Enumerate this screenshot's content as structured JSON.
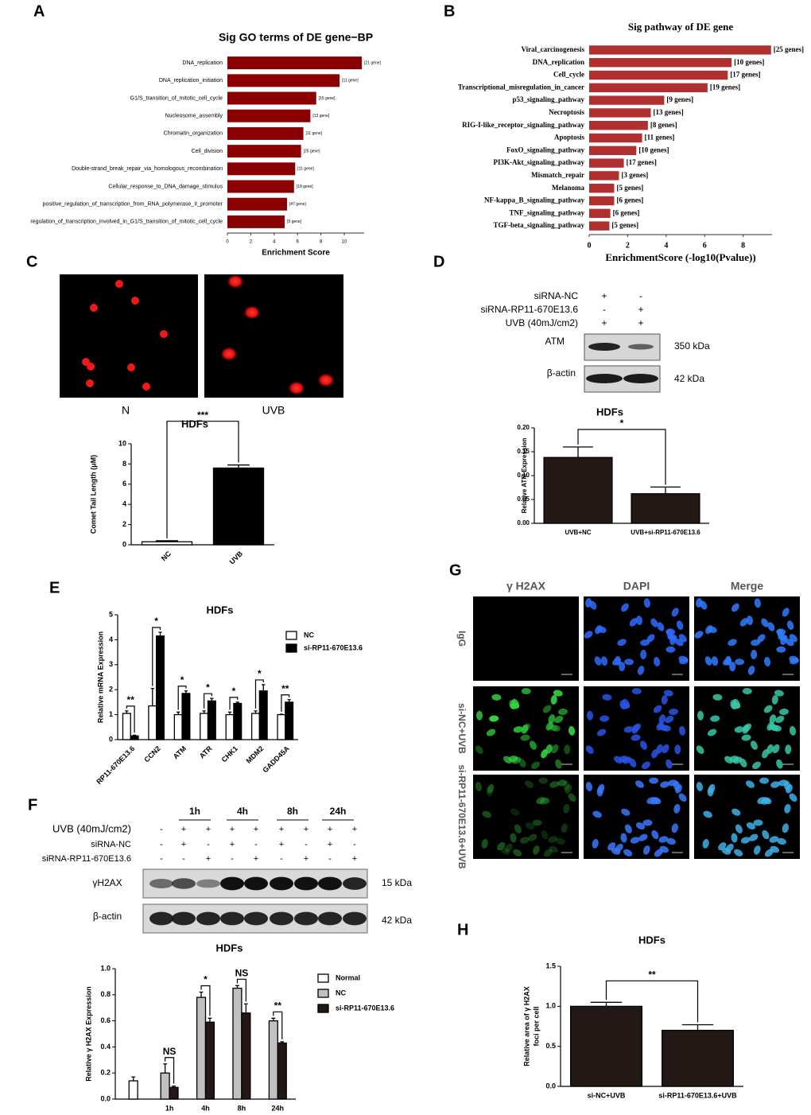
{
  "panel_labels": [
    "A",
    "B",
    "C",
    "D",
    "E",
    "F",
    "G",
    "H"
  ],
  "chart_data": [
    {
      "type": "bar",
      "orientation": "horizontal",
      "title": "Sig GO terms of DE gene−BP",
      "xlabel": "Enrichment Score",
      "categories": [
        "DNA_replication",
        "DNA_replication_initiation",
        "G1/S_transition_of_mitotic_cell_cycle",
        "Nucleosome_assembly",
        "Chromatin_organization",
        "Cell_division",
        "Double-strand_break_repair_via_homologous_recombination",
        "Cellular_response_to_DNA_damage_stimulus",
        "positive_regulation_of_transcription_from_RNA_polymerase_II_promoter",
        "regulation_of_transcription_involved_in_G1/S_transition_of_mitotic_cell_cycle"
      ],
      "values": [
        11.5,
        9.6,
        7.6,
        7.1,
        6.5,
        6.3,
        5.8,
        5.7,
        5.1,
        4.9
      ],
      "bar_annotations": [
        "[21 gene]",
        "[11 gene]",
        "[15 gene]",
        "[13 gene]",
        "[11 gene]",
        "[25 gene]",
        "[11 gene]",
        "[18 gene]",
        "[47 gene]",
        "[9 gene]"
      ],
      "color": "#8b0000",
      "xlim": [
        0,
        11.7
      ],
      "xticks": [
        0,
        2,
        4,
        6,
        8,
        10
      ]
    },
    {
      "type": "bar",
      "orientation": "horizontal",
      "title": "Sig pathway of DE gene",
      "xlabel": "EnrichmentScore (-log10(Pvalue))",
      "categories": [
        "Viral_carcinogenesis",
        "DNA_replication",
        "Cell_cycle",
        "Transcriptional_misregulation_in_cancer",
        "p53_signaling_pathway",
        "Necroptosis",
        "RIG-I-like_receptor_signaling_pathway",
        "Apoptosis",
        "FoxO_signaling_pathway",
        "PI3K-Akt_signaling_pathway",
        "Mismatch_repair",
        "Melanoma",
        "NF-kappa_B_signaling_pathway",
        "TNF_signaling_pathway",
        "TGF-beta_signaling_pathway"
      ],
      "values": [
        9.45,
        7.4,
        7.2,
        6.15,
        3.9,
        3.2,
        3.05,
        2.75,
        2.45,
        1.8,
        1.55,
        1.3,
        1.3,
        1.1,
        1.05
      ],
      "bar_annotations": [
        "[25 genes]",
        "[10 genes]",
        "[17 genes]",
        "[19 genes]",
        "[9 genes]",
        "[13 genes]",
        "[8 genes]",
        "[11 genes]",
        "[10 genes]",
        "[17 genes]",
        "[3 genes]",
        "[5 genes]",
        "[6 genes]",
        "[6 genes]",
        "[5 genes]"
      ],
      "color": "#b03030",
      "xlim": [
        0,
        9.5
      ],
      "xticks": [
        0,
        2,
        4,
        6,
        8
      ]
    },
    {
      "type": "bar",
      "title": "HDFs",
      "ylabel": "Comet Tail Length (μM)",
      "categories": [
        "NC",
        "UVB"
      ],
      "values": [
        0.3,
        7.6
      ],
      "errors": [
        0.1,
        0.3
      ],
      "colors": [
        "#ffffff",
        "#000000"
      ],
      "ylim": [
        0,
        10
      ],
      "yticks": [
        0,
        2,
        4,
        6,
        8,
        10
      ],
      "significance": "***"
    },
    {
      "type": "bar",
      "title": "HDFs",
      "ylabel": "Relative ATM Expression",
      "categories": [
        "UVB+NC",
        "UVB+si-RP11-670E13.6"
      ],
      "values": [
        0.138,
        0.062
      ],
      "errors": [
        0.022,
        0.014
      ],
      "color": "#231815",
      "ylim": [
        0,
        0.2
      ],
      "yticks": [
        {
          "value": 0,
          "label": "0.00"
        },
        0.05,
        {
          "value": 0.1,
          "label": "0.10"
        },
        0.15,
        {
          "value": 0.2,
          "label": "0.20"
        }
      ],
      "significance": "*"
    },
    {
      "type": "bar",
      "title": "HDFs",
      "ylabel": "Relative mRNA Expression",
      "categories": [
        "RP11-670E13.6",
        "CCN2",
        "ATM",
        "ATR",
        "CHK1",
        "MDM2",
        "GADD45A"
      ],
      "series": [
        {
          "name": "NC",
          "color": "#ffffff",
          "values": [
            1.05,
            1.35,
            1.0,
            1.05,
            1.0,
            1.05,
            1.0
          ],
          "errors": [
            0.1,
            0.7,
            0.1,
            0.1,
            0.1,
            0.1,
            0.02
          ]
        },
        {
          "name": "si-RP11-670E13.6",
          "color": "#000000",
          "values": [
            0.15,
            4.15,
            1.85,
            1.55,
            1.45,
            1.95,
            1.5
          ],
          "errors": [
            0.03,
            0.15,
            0.1,
            0.1,
            0.05,
            0.25,
            0.1
          ]
        }
      ],
      "ylim": [
        0,
        5
      ],
      "yticks": [
        0,
        1,
        2,
        3,
        4,
        5
      ],
      "significance": [
        "**",
        "*",
        "*",
        "*",
        "*",
        "*",
        "**"
      ]
    },
    {
      "type": "bar",
      "title": "HDFs",
      "ylabel": "Relative γ H2AX Expression",
      "categories": [
        null,
        "1h",
        "4h",
        "8h",
        "24h"
      ],
      "series": [
        {
          "name": "Normal",
          "color": "#ffffff",
          "values": [
            0.14,
            null,
            null,
            null,
            null
          ],
          "errors": [
            0.03,
            null,
            null,
            null,
            null
          ]
        },
        {
          "name": "NC",
          "color": "#c0c0c0",
          "values": [
            null,
            0.2,
            0.78,
            0.85,
            0.6
          ],
          "errors": [
            null,
            0.07,
            0.04,
            0.02,
            0.02
          ]
        },
        {
          "name": "si-RP11-670E13.6",
          "color": "#231815",
          "values": [
            null,
            0.09,
            0.59,
            0.66,
            0.43
          ],
          "errors": [
            null,
            0.01,
            0.03,
            0.07,
            0.01
          ]
        }
      ],
      "ylim": [
        0,
        1
      ],
      "yticks": [
        {
          "value": 0,
          "label": "0.0"
        },
        0.2,
        0.4,
        0.6,
        0.8,
        {
          "value": 1,
          "label": "1.0"
        }
      ],
      "significance": [
        null,
        "NS",
        "*",
        "NS",
        "**"
      ]
    },
    {
      "type": "bar",
      "title": "HDFs",
      "ylabel": [
        "Relative area of γ H2AX",
        "foci per cell"
      ],
      "categories": [
        "si-NC+UVB",
        "si-RP11-670E13.6+UVB"
      ],
      "values": [
        1.0,
        0.7
      ],
      "errors": [
        0.05,
        0.07
      ],
      "color": "#231815",
      "ylim": [
        0,
        1.5
      ],
      "yticks": [
        {
          "value": 0,
          "label": "0.0"
        },
        0.5,
        {
          "value": 1,
          "label": "1.0"
        },
        1.5
      ],
      "significance": "**"
    }
  ],
  "panel_c_images": {
    "labels": [
      "N",
      "UVB"
    ]
  },
  "panel_d_blot": {
    "conditions": [
      "siRNA-NC",
      "siRNA-RP11-670E13.6",
      "UVB (40mJ/cm2)"
    ],
    "signs": [
      [
        "+",
        "-"
      ],
      [
        "-",
        "+"
      ],
      [
        "+",
        "+"
      ]
    ],
    "bands": [
      "ATM",
      "β-actin"
    ],
    "sizes": [
      "350 kDa",
      "42 kDa"
    ]
  },
  "panel_f_blot": {
    "timepoints": [
      "1h",
      "4h",
      "8h",
      "24h"
    ],
    "conditions": [
      "UVB (40mJ/cm2)",
      "siRNA-NC",
      "siRNA-RP11-670E13.6"
    ],
    "signs": [
      [
        "-",
        "+",
        "+",
        "+",
        "+",
        "+",
        "+",
        "+",
        "+"
      ],
      [
        "-",
        "+",
        "-",
        "+",
        "-",
        "+",
        "-",
        "+",
        "-"
      ],
      [
        "-",
        "-",
        "+",
        "-",
        "+",
        "-",
        "+",
        "-",
        "+"
      ]
    ],
    "bands": [
      "γH2AX",
      "β-actin"
    ],
    "sizes": [
      "15 kDa",
      "42 kDa"
    ]
  },
  "panel_g_images": {
    "columns": [
      "γ H2AX",
      "DAPI",
      "Merge"
    ],
    "rows": [
      "IgG",
      "si-NC+UVB",
      "si-RP11-670E13.6+UVB"
    ]
  }
}
